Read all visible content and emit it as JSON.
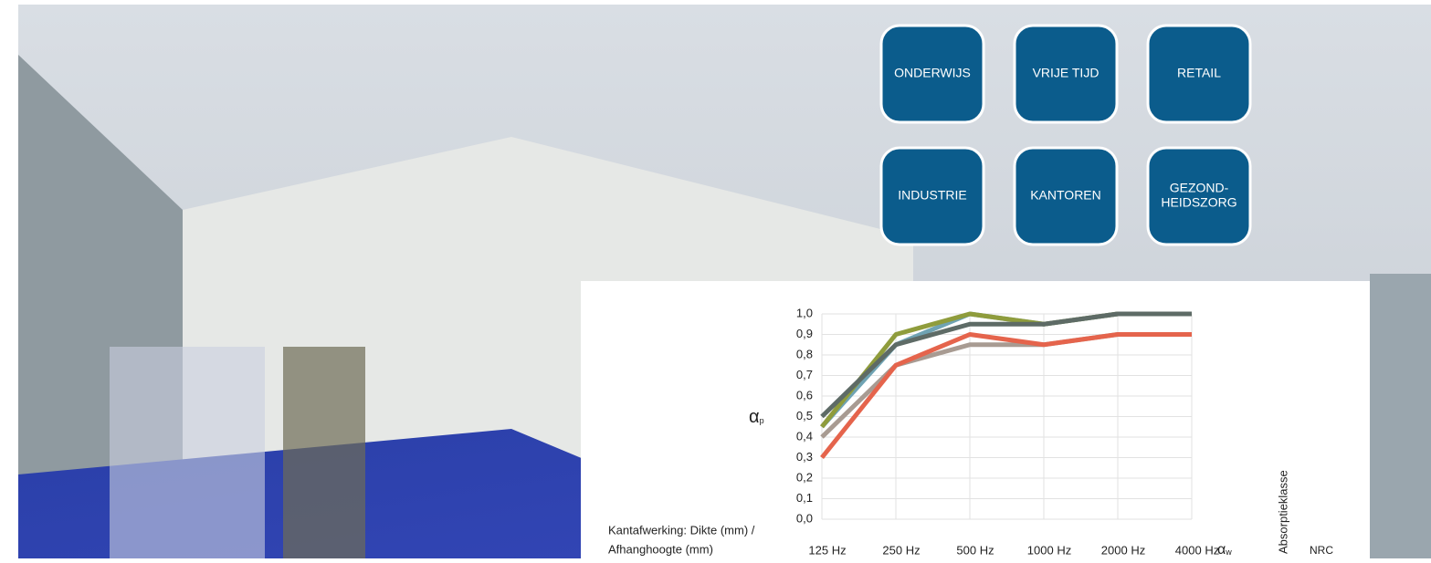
{
  "buttons": [
    "ONDERWIJS",
    "VRIJE TIJD",
    "RETAIL",
    "INDUSTRIE",
    "KANTOREN",
    [
      "GEZOND-",
      "HEIDSZORG"
    ]
  ],
  "side_label": [
    "Kantafwerking: Dikte (mm) /",
    "Afhanghoogte (mm)"
  ],
  "alpha_w": {
    "symbol": "α",
    "sub": "w"
  },
  "absorption_class": "Absorptieklasse",
  "nrc": "NRC",
  "chart_data": {
    "type": "line",
    "ylabel": {
      "symbol": "α",
      "sub": "p"
    },
    "categories": [
      "125 Hz",
      "250 Hz",
      "500 Hz",
      "1000 Hz",
      "2000 Hz",
      "4000 Hz"
    ],
    "series": [
      {
        "color": "#a89b92",
        "values": [
          0.4,
          0.75,
          0.85,
          0.85,
          0.9,
          0.9
        ]
      },
      {
        "color": "#e5644c",
        "values": [
          0.3,
          0.75,
          0.9,
          0.85,
          0.9,
          0.9
        ]
      },
      {
        "color": "#6fa3b3",
        "values": [
          0.45,
          0.85,
          1.0,
          0.95,
          1.0,
          1.0
        ]
      },
      {
        "color": "#8f9c3c",
        "values": [
          0.45,
          0.9,
          1.0,
          0.95,
          1.0,
          1.0
        ]
      },
      {
        "color": "#5e6b66",
        "values": [
          0.5,
          0.85,
          0.95,
          0.95,
          1.0,
          1.0
        ]
      }
    ],
    "ylim": [
      0,
      1
    ],
    "yticks": [
      {
        "value": 0,
        "label": "0,0"
      },
      {
        "value": 0.1,
        "label": "0,1"
      },
      {
        "value": 0.2,
        "label": "0,2"
      },
      {
        "value": 0.3,
        "label": "0,3"
      },
      {
        "value": 0.4,
        "label": "0,4"
      },
      {
        "value": 0.5,
        "label": "0,5"
      },
      {
        "value": 0.6,
        "label": "0,6"
      },
      {
        "value": 0.7,
        "label": "0,7"
      },
      {
        "value": 0.8,
        "label": "0,8"
      },
      {
        "value": 0.9,
        "label": "0,9"
      },
      {
        "value": 1,
        "label": "1,0"
      }
    ],
    "grid": true
  }
}
